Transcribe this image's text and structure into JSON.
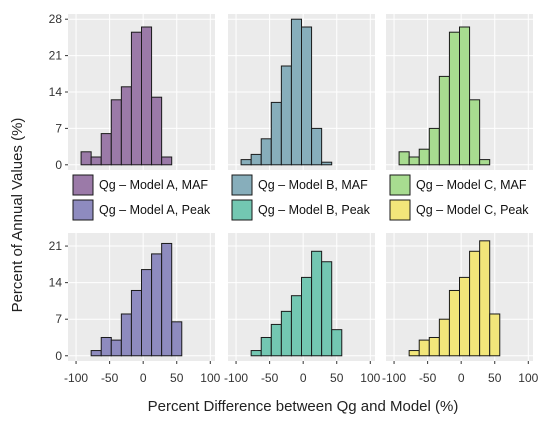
{
  "chart_data": {
    "type": "bar",
    "layout": "2x3 facet grid of histograms",
    "ylabel": "Percent of Annual Values (%)",
    "xlabel": "Percent Difference between Qg and Model (%)",
    "bin_centers": [
      -85,
      -70,
      -55,
      -40,
      -25,
      -10,
      5,
      20,
      35,
      50,
      65,
      80,
      95
    ],
    "bin_width": 15,
    "rows": [
      {
        "yticks": [
          0,
          7,
          14,
          21,
          28
        ],
        "ylim": [
          -1,
          29
        ],
        "xticks": [],
        "panels": [
          {
            "series": "Qg – Model A, MAF",
            "color": "#9b7aa8",
            "values": [
              2.5,
              1.5,
              6,
              12.5,
              15,
              25.5,
              26.5,
              13,
              1.5,
              0,
              0,
              0,
              0
            ]
          },
          {
            "series": "Qg – Model B, MAF",
            "color": "#87aebb",
            "values": [
              1,
              2,
              5,
              12,
              19,
              28,
              26.5,
              7,
              0.5,
              0,
              0,
              0,
              0
            ]
          },
          {
            "series": "Qg – Model C, MAF",
            "color": "#a8dc90",
            "values": [
              2.5,
              1.5,
              3,
              7,
              17,
              25.5,
              26.5,
              12.5,
              1,
              0,
              0,
              0,
              0
            ]
          }
        ]
      },
      {
        "yticks": [
          0,
          7,
          14,
          21
        ],
        "ylim": [
          -1,
          23.5
        ],
        "xticks": [
          -100,
          -50,
          0,
          50,
          100
        ],
        "panels": [
          {
            "series": "Qg – Model A, Peak",
            "color": "#8e8bbf",
            "values": [
              0,
              1,
              3.5,
              3,
              8,
              12.5,
              16.5,
              19.5,
              21.5,
              6.5,
              0,
              0,
              0
            ]
          },
          {
            "series": "Qg – Model B, Peak",
            "color": "#73c7b2",
            "values": [
              0,
              1,
              3.5,
              6,
              8.5,
              11.5,
              15,
              20,
              18,
              5,
              0,
              0,
              0
            ]
          },
          {
            "series": "Qg – Model C, Peak",
            "color": "#f2e67a",
            "values": [
              0,
              1,
              3,
              3.5,
              7,
              12.5,
              15,
              20,
              22,
              8,
              0,
              0,
              0
            ]
          }
        ]
      }
    ],
    "legend": [
      {
        "label": "Qg – Model A, MAF",
        "color": "#9b7aa8"
      },
      {
        "label": "Qg – Model A, Peak",
        "color": "#8e8bbf"
      },
      {
        "label": "Qg – Model B, MAF",
        "color": "#87aebb"
      },
      {
        "label": "Qg – Model B, Peak",
        "color": "#73c7b2"
      },
      {
        "label": "Qg – Model C, MAF",
        "color": "#a8dc90"
      },
      {
        "label": "Qg – Model C, Peak",
        "color": "#f2e67a"
      }
    ],
    "legend_placement": "between-rows",
    "grid": true
  }
}
